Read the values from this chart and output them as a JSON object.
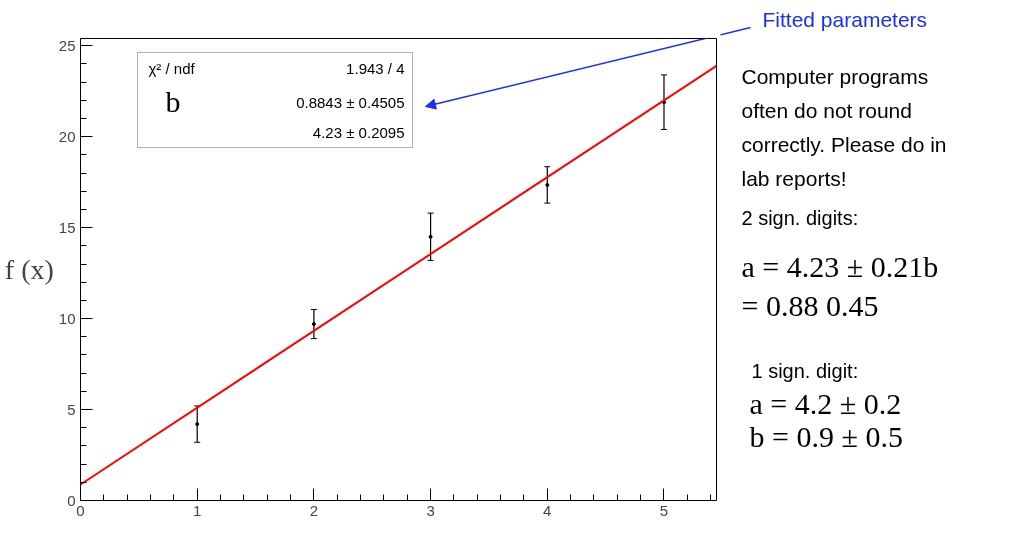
{
  "chart_data": {
    "type": "scatter",
    "ylabel": "f (x)",
    "x": [
      1,
      2,
      3,
      4,
      5
    ],
    "xlim": [
      0,
      5.45
    ],
    "ylim": [
      0,
      25.4
    ],
    "xticks": [
      0,
      1,
      2,
      3,
      4,
      5
    ],
    "yticks": [
      0,
      5,
      10,
      15,
      20,
      25
    ],
    "grid": false,
    "series": [
      {
        "marker": "circle",
        "color": "#000000",
        "values": [
          4.2,
          9.7,
          14.5,
          17.35,
          21.9
        ],
        "errors": [
          1.0,
          0.8,
          1.3,
          1.0,
          1.5
        ]
      },
      {
        "type": "line",
        "color": "#ff0000",
        "x": [
          0,
          5.45
        ],
        "values": [
          0.88,
          23.9
        ],
        "line_style": "solid"
      }
    ],
    "annotations": [
      "χ² / ndf",
      "1.943 / 4",
      "b",
      "0.8843 ± 0.4505",
      "4.23 ± 0.2095",
      "Fitted parameters",
      "Computer programs",
      "often do not round",
      "correctly. Please do in",
      "lab reports!",
      "2 sign. digits:",
      "a =  4.23 ± 0.21b",
      "=  0.88     0.45",
      "1 sign. digit:",
      "a =  4.2 ± 0.2",
      "b =  0.9 ± 0.5"
    ]
  }
}
